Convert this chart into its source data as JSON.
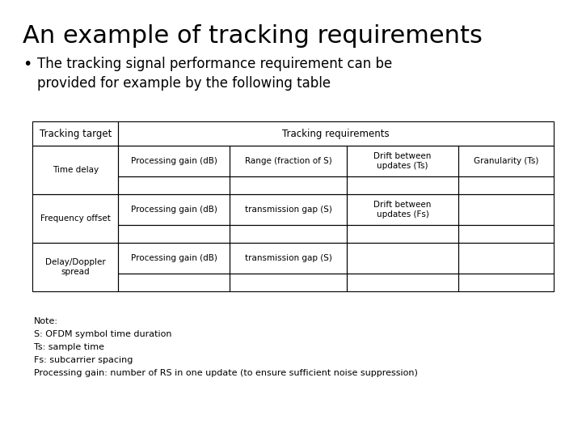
{
  "title": "An example of tracking requirements",
  "bullet_text": "The tracking signal performance requirement can be\nprovided for example by the following table",
  "table_header_col1": "Tracking target",
  "table_header_col2": "Tracking requirements",
  "col_headers_row1": [
    "Processing gain (dB)",
    "Range (fraction of S)",
    "Drift between\nupdates (Ts)",
    "Granularity (Ts)"
  ],
  "col_headers_row2": [
    "Processing gain (dB)",
    "transmission gap (S)",
    "Drift between\nupdates (Fs)",
    ""
  ],
  "col_headers_row3": [
    "Processing gain (dB)",
    "transmission gap (S)",
    "",
    ""
  ],
  "row_labels": [
    "Time delay",
    "Frequency offset",
    "Delay/Doppler\nspread"
  ],
  "notes": [
    "Note:",
    "S: OFDM symbol time duration",
    "Ts: sample time",
    "Fs: subcarrier spacing",
    "Processing gain: number of RS in one update (to ensure sufficient noise suppression)"
  ],
  "bg_color": "#ffffff",
  "text_color": "#000000",
  "title_fontsize": 22,
  "bullet_fontsize": 12,
  "table_header_fontsize": 8.5,
  "table_cell_fontsize": 7.5,
  "note_fontsize": 8
}
